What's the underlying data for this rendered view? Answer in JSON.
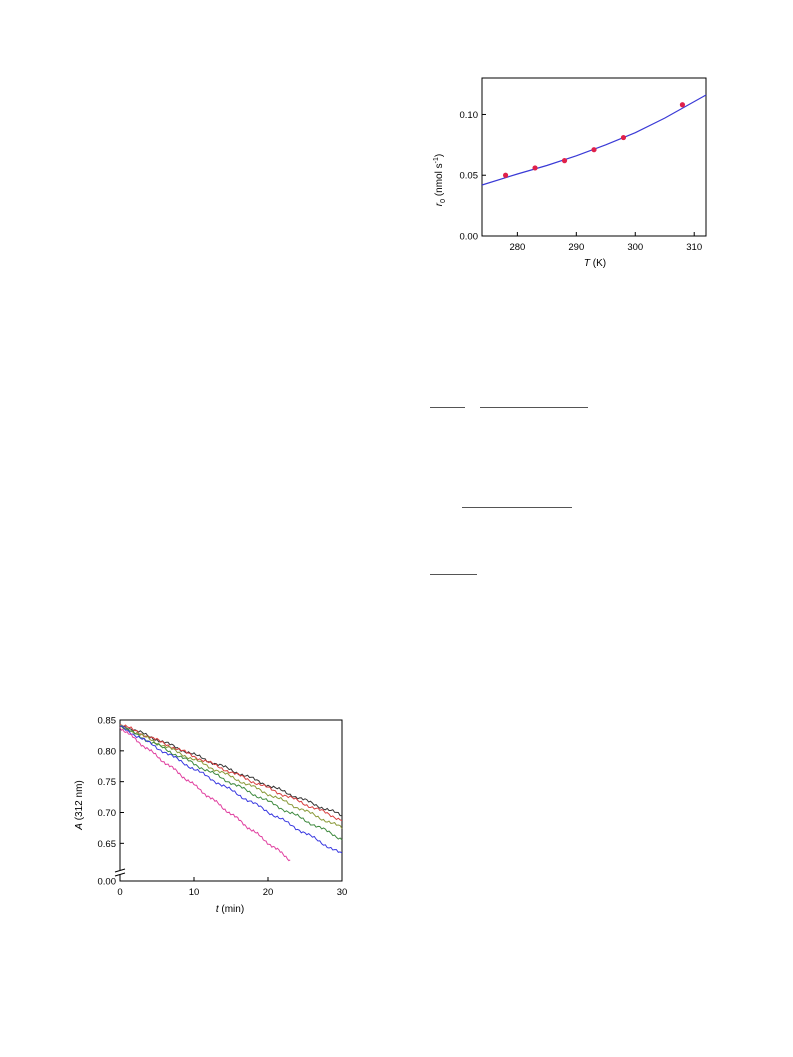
{
  "chart_data": [
    {
      "type": "scatter",
      "xlabel_var": "T",
      "xlabel_unit": "(K)",
      "ylabel_var": "r",
      "ylabel_sub": "0",
      "ylabel_unit": "(nmol s",
      "ylabel_sup": "-1",
      "ylabel_close": ")",
      "xlim": [
        274,
        312
      ],
      "ylim": [
        0,
        0.13
      ],
      "xticks": [
        280,
        290,
        300,
        310
      ],
      "yticks": [
        0.0,
        0.05,
        0.1
      ],
      "xtick_labels": [
        "280",
        "290",
        "300",
        "310"
      ],
      "ytick_labels": [
        "0.00",
        "0.05",
        "0.10"
      ],
      "grid": false,
      "points": {
        "color": "#e0204a",
        "x": [
          278,
          283,
          288,
          293,
          298,
          308
        ],
        "y": [
          0.05,
          0.056,
          0.062,
          0.071,
          0.081,
          0.108
        ]
      },
      "fit": {
        "color": "#3a3ad6",
        "x": [
          274,
          280,
          285,
          290,
          295,
          300,
          305,
          312
        ],
        "y": [
          0.042,
          0.051,
          0.058,
          0.066,
          0.075,
          0.085,
          0.097,
          0.116
        ]
      }
    },
    {
      "type": "line",
      "xlabel_var": "t",
      "xlabel_unit": "(min)",
      "ylabel_var": "A",
      "ylabel_unit": "(312 nm)",
      "xlim": [
        0,
        30
      ],
      "ylim": [
        0.6,
        0.85
      ],
      "axis_break": true,
      "xticks": [
        0,
        10,
        20,
        30
      ],
      "xtick_labels": [
        "0",
        "10",
        "20",
        "30"
      ],
      "yticks": [
        0.0,
        0.65,
        0.7,
        0.75,
        0.8,
        0.85
      ],
      "ytick_labels": [
        "0.00",
        "0.65",
        "0.70",
        "0.75",
        "0.80",
        "0.85"
      ],
      "grid": false,
      "series": [
        {
          "color": "#333333",
          "x": [
            0,
            30
          ],
          "y": [
            0.843,
            0.695
          ]
        },
        {
          "color": "#d84040",
          "x": [
            0,
            30
          ],
          "y": [
            0.843,
            0.688
          ]
        },
        {
          "color": "#8a9a3a",
          "x": [
            0,
            30
          ],
          "y": [
            0.841,
            0.675
          ]
        },
        {
          "color": "#3f8a3f",
          "x": [
            0,
            30
          ],
          "y": [
            0.84,
            0.657
          ]
        },
        {
          "color": "#3838e0",
          "x": [
            0,
            30
          ],
          "y": [
            0.84,
            0.632
          ]
        },
        {
          "color": "#e040a0",
          "x": [
            0,
            23
          ],
          "y": [
            0.838,
            0.623
          ]
        }
      ]
    }
  ]
}
